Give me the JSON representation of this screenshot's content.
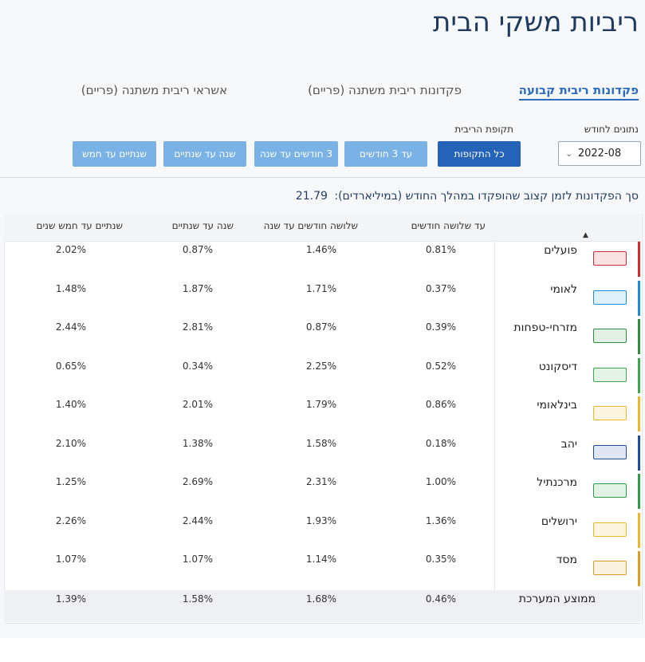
{
  "page": {
    "title": "ריביות משקי הבית"
  },
  "tabs": [
    {
      "label": "פקדונות ריבית קבועה",
      "active": true
    },
    {
      "label": "פקדונות ריבית משתנה (פריים)",
      "active": false
    },
    {
      "label": "אשראי ריבית משתנה (פריים)",
      "active": false
    }
  ],
  "filters": {
    "month_label": "נתונים לחודש",
    "month_value": "2022-08",
    "period_label": "תקופת הריבית",
    "periods": [
      {
        "label": "כל התקופות",
        "active": true
      },
      {
        "label": "עד 3 חודשים",
        "active": false
      },
      {
        "label": "3 חודשים עד שנה",
        "active": false
      },
      {
        "label": "שנה עד שנתיים",
        "active": false
      },
      {
        "label": "שנתיים עד חמש",
        "active": false
      }
    ]
  },
  "summary": {
    "text": "סך הפקדונות לזמן קצוב שהופקדו במהלך החודש (במיליארדים):",
    "value": "21.79"
  },
  "table": {
    "columns": [
      "עד שלושה חודשים",
      "שלושה חודשים עד שנה",
      "שנה עד שנתיים",
      "שנתיים עד חמש שנים"
    ],
    "rows": [
      {
        "bank": "פועלים",
        "logo_icon": "bank-hapoalim-logo-icon",
        "color": "#d7282f",
        "values": [
          "0.81%",
          "1.46%",
          "0.87%",
          "2.02%"
        ]
      },
      {
        "bank": "לאומי",
        "logo_icon": "bank-leumi-logo-icon",
        "color": "#1a8fd8",
        "values": [
          "0.37%",
          "1.71%",
          "1.87%",
          "1.48%"
        ]
      },
      {
        "bank": "מזרחי-טפחות",
        "logo_icon": "mizrahi-tefahot-logo-icon",
        "color": "#2e8b3e",
        "values": [
          "0.39%",
          "0.87%",
          "2.81%",
          "2.44%"
        ]
      },
      {
        "bank": "דיסקונט",
        "logo_icon": "discount-logo-icon",
        "color": "#3aa84a",
        "values": [
          "0.52%",
          "2.25%",
          "0.34%",
          "0.65%"
        ]
      },
      {
        "bank": "בינלאומי",
        "logo_icon": "beinleumi-logo-icon",
        "color": "#f0b429",
        "values": [
          "0.86%",
          "1.79%",
          "2.01%",
          "1.40%"
        ]
      },
      {
        "bank": "יהב",
        "logo_icon": "yahav-logo-icon",
        "color": "#1f4e9c",
        "values": [
          "0.18%",
          "1.58%",
          "1.38%",
          "2.10%"
        ]
      },
      {
        "bank": "מרכנתיל",
        "logo_icon": "mercantile-logo-icon",
        "color": "#2e9b45",
        "values": [
          "1.00%",
          "2.31%",
          "2.69%",
          "1.25%"
        ]
      },
      {
        "bank": "ירושלים",
        "logo_icon": "jerusalem-logo-icon",
        "color": "#f0b429",
        "values": [
          "1.36%",
          "1.93%",
          "2.44%",
          "2.26%"
        ]
      },
      {
        "bank": "מסד",
        "logo_icon": "massad-logo-icon",
        "color": "#e09b20",
        "values": [
          "0.35%",
          "1.14%",
          "1.07%",
          "1.07%"
        ]
      }
    ],
    "average": {
      "label": "ממוצע המערכת",
      "values": [
        "0.46%",
        "1.68%",
        "1.58%",
        "1.39%"
      ]
    }
  }
}
